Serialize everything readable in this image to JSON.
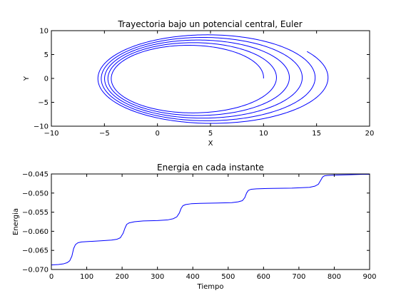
{
  "chart_data": [
    {
      "type": "line",
      "title": "Trayectoria bajo un potencial central, Euler",
      "xlabel": "X",
      "ylabel": "Y",
      "xlim": [
        -10,
        20
      ],
      "ylim": [
        -10,
        10
      ],
      "xticks": [
        -10,
        -5,
        0,
        5,
        10,
        15,
        20
      ],
      "xtick_labels": [
        "−10",
        "−5",
        "0",
        "5",
        "10",
        "15",
        "20"
      ],
      "yticks": [
        -10,
        -5,
        0,
        5,
        10
      ],
      "ytick_labels": [
        "−10",
        "−5",
        "0",
        "5",
        "10"
      ],
      "grid": false,
      "line_color": "#0000ff",
      "orbit": {
        "start_point": [
          10.0,
          0.0
        ],
        "end_point": [
          14.8,
          4.6
        ],
        "revolutions": 5.1,
        "right_x_start": 10.0,
        "right_x_end": 16.2,
        "left_x_start": -4.2,
        "left_x_end": -5.8,
        "half_height_start": 6.8,
        "half_height_end": 9.6,
        "center_y_offset": -0.6
      }
    },
    {
      "type": "line",
      "title": "Energia en cada instante",
      "xlabel": "Tiempo",
      "ylabel": "Energia",
      "xlim": [
        0,
        900
      ],
      "ylim": [
        -0.07,
        -0.045
      ],
      "xticks": [
        0,
        100,
        200,
        300,
        400,
        500,
        600,
        700,
        800,
        900
      ],
      "xtick_labels": [
        "0",
        "100",
        "200",
        "300",
        "400",
        "500",
        "600",
        "700",
        "800",
        "900"
      ],
      "yticks": [
        -0.07,
        -0.065,
        -0.06,
        -0.055,
        -0.05,
        -0.045
      ],
      "ytick_labels": [
        "−0.070",
        "−0.065",
        "−0.060",
        "−0.055",
        "−0.050",
        "−0.045"
      ],
      "grid": false,
      "line_color": "#0000ff",
      "series": [
        {
          "x": [
            0,
            20,
            35,
            45,
            52,
            58,
            63,
            68,
            75,
            85,
            100,
            140,
            170,
            185,
            195,
            203,
            208,
            213,
            220,
            235,
            260,
            300,
            330,
            345,
            355,
            362,
            367,
            372,
            380,
            395,
            420,
            470,
            510,
            528,
            540,
            547,
            552,
            557,
            565,
            580,
            610,
            680,
            730,
            745,
            755,
            762,
            767,
            772,
            780,
            800,
            840,
            880,
            900
          ],
          "y": [
            -0.0688,
            -0.0687,
            -0.0685,
            -0.0682,
            -0.0677,
            -0.0665,
            -0.0645,
            -0.0635,
            -0.063,
            -0.0628,
            -0.0627,
            -0.0625,
            -0.0623,
            -0.0621,
            -0.0617,
            -0.0605,
            -0.0592,
            -0.0582,
            -0.0578,
            -0.0575,
            -0.0573,
            -0.0572,
            -0.057,
            -0.0567,
            -0.0562,
            -0.0552,
            -0.054,
            -0.0533,
            -0.053,
            -0.0528,
            -0.0527,
            -0.0526,
            -0.0525,
            -0.0523,
            -0.052,
            -0.0512,
            -0.05,
            -0.0493,
            -0.049,
            -0.0489,
            -0.0488,
            -0.0487,
            -0.0485,
            -0.0482,
            -0.0477,
            -0.0466,
            -0.0458,
            -0.0455,
            -0.0454,
            -0.0453,
            -0.0452,
            -0.0451,
            -0.0451
          ]
        }
      ]
    }
  ]
}
